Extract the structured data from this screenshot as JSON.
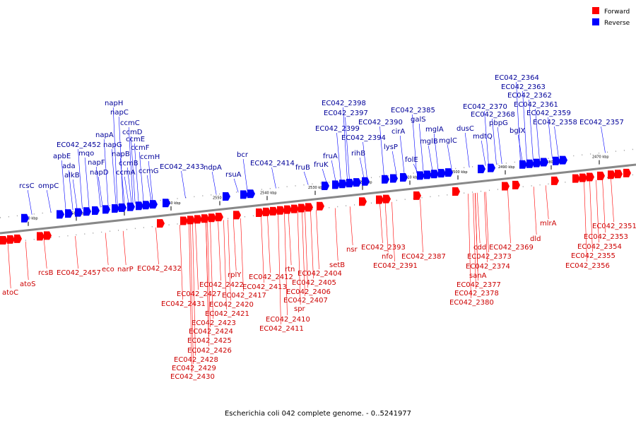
{
  "caption": "Escherichia coli 042 complete genome. - 0..5241977",
  "legend": [
    {
      "label": "Forward",
      "color": "#ff0000"
    },
    {
      "label": "Reverse",
      "color": "#0000ff"
    }
  ],
  "colors": {
    "forward": "#ff0000",
    "reverse": "#0000ff",
    "axis": "#888888",
    "forwardText": "#cc0000",
    "reverseText": "#000099"
  },
  "ticks": [
    "2590 kbp",
    "2580 kbp",
    "2570 kbp",
    "2560 kbp",
    "2550 kbp",
    "2540 kbp",
    "2530 kbp",
    "2520 kbp",
    "2510 kbp",
    "2500 kbp",
    "2490 kbp",
    "2480 kbp",
    "2470 kbp"
  ],
  "reverse_genes": [
    "rcsC",
    "ompC",
    "apbE",
    "ada",
    "alkB",
    "EC042_2452",
    "mqo",
    "napF",
    "napD",
    "napA",
    "napG",
    "napH",
    "napC",
    "ccmC",
    "ccmD",
    "ccmE",
    "napB",
    "ccmB",
    "ccmA",
    "ccmF",
    "ccmH",
    "ccmG",
    "EC042_2433",
    "ndpA",
    "rsuA",
    "bcr",
    "EC042_2414",
    "fruB",
    "fruK",
    "fruA",
    "EC042_2399",
    "EC042_2398",
    "EC042_2397",
    "EC042_2394",
    "rihB",
    "EC042_2390",
    "lysP",
    "cirA",
    "EC042_2385",
    "galS",
    "folE",
    "mglB",
    "mglA",
    "mglC",
    "dusC",
    "mdtQ",
    "EC042_2370",
    "EC042_2368",
    "pbpG",
    "bglX",
    "EC042_2364",
    "EC042_2363",
    "EC042_2362",
    "EC042_2361",
    "EC042_2359",
    "EC042_2358",
    "EC042_2357"
  ],
  "forward_genes": [
    "atoC",
    "atoS",
    "rcsB",
    "EC042_2457",
    "eco",
    "narP",
    "EC042_2432",
    "EC042_2431",
    "EC042_2427",
    "EC042_2428",
    "EC042_2429",
    "EC042_2430",
    "EC042_2426",
    "EC042_2425",
    "EC042_2424",
    "EC042_2423",
    "EC042_2422",
    "EC042_2421",
    "EC042_2420",
    "EC042_2417",
    "rplY",
    "EC042_2412",
    "EC042_2413",
    "EC042_2410",
    "EC042_2411",
    "spr",
    "EC042_2407",
    "EC042_2406",
    "EC042_2405",
    "rtn",
    "EC042_2404",
    "setB",
    "nsr",
    "EC042_2393",
    "nfo",
    "EC042_2391",
    "EC042_2387",
    "sanA",
    "EC042_2377",
    "EC042_2378",
    "EC042_2380",
    "cdd",
    "EC042_2373",
    "EC042_2374",
    "EC042_2369",
    "dld",
    "mlrA",
    "EC042_2351",
    "EC042_2353",
    "EC042_2354",
    "EC042_2355",
    "EC042_2356"
  ]
}
